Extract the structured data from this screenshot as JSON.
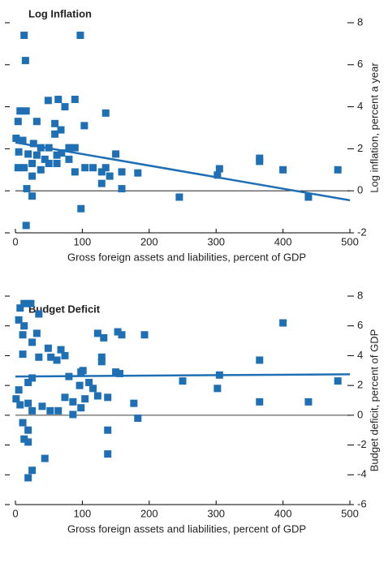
{
  "chart_data": [
    {
      "type": "scatter",
      "title": "Log Inflation",
      "x_label": "Gross foreign assets and liabilities, percent of GDP",
      "y_label": "Log inflation, percent a year",
      "color": "#1f6fb5",
      "zero_line": true,
      "x": [
        13,
        97,
        15,
        16,
        98,
        64,
        49,
        89,
        74,
        135,
        103,
        59,
        68,
        59,
        7,
        16,
        4,
        32,
        1,
        11,
        27,
        38,
        50,
        5,
        19,
        32,
        44,
        62,
        80,
        89,
        69,
        80,
        25,
        13,
        4,
        38,
        50,
        62,
        89,
        104,
        116,
        129,
        135,
        141,
        159,
        150,
        183,
        129,
        159,
        25,
        17,
        25,
        245,
        305,
        302,
        365,
        365,
        400,
        438,
        482
      ],
      "y": [
        7.4,
        7.4,
        6.2,
        -1.65,
        -0.85,
        4.35,
        4.3,
        4.35,
        4.0,
        3.7,
        3.1,
        3.2,
        2.9,
        2.7,
        3.8,
        3.8,
        3.3,
        3.3,
        2.5,
        2.4,
        2.25,
        2.05,
        2.05,
        1.85,
        1.75,
        1.7,
        1.5,
        1.7,
        2.05,
        2.05,
        1.8,
        1.5,
        1.3,
        1.1,
        1.1,
        1.0,
        1.3,
        1.3,
        0.9,
        1.1,
        1.1,
        0.9,
        1.1,
        0.7,
        0.9,
        1.75,
        0.85,
        0.35,
        0.1,
        -0.25,
        0.1,
        0.7,
        -0.3,
        1.05,
        0.75,
        1.55,
        1.4,
        1.0,
        -0.3,
        1.0
      ],
      "trend": {
        "x": [
          0,
          500
        ],
        "y": [
          2.3,
          -0.45
        ]
      },
      "xlim": [
        0,
        500
      ],
      "xticks": [
        0,
        100,
        200,
        300,
        400,
        500
      ],
      "ylim": [
        -2,
        8
      ],
      "yticks": [
        -2,
        0,
        2,
        4,
        6,
        8
      ]
    },
    {
      "type": "scatter",
      "title": "Budget Deficit",
      "x_label": "Gross foreign assets and liabilities, percent of GDP",
      "y_label": "Budget deficit, percent of GDP",
      "color": "#1f6fb5",
      "zero_line": true,
      "x": [
        13,
        23,
        7,
        5,
        35,
        13,
        32,
        11,
        123,
        153,
        159,
        132,
        193,
        25,
        49,
        68,
        11,
        35,
        53,
        62,
        74,
        129,
        129,
        150,
        156,
        98,
        101,
        80,
        19,
        25,
        305,
        250,
        302,
        365,
        365,
        400,
        438,
        482,
        1,
        5,
        7,
        19,
        25,
        40,
        52,
        64,
        74,
        86,
        98,
        104,
        116,
        123,
        138,
        177,
        183,
        86,
        11,
        19,
        13,
        19,
        44,
        25,
        19,
        138,
        138,
        96,
        110
      ],
      "y": [
        7.5,
        7.5,
        7.2,
        6.4,
        6.8,
        6.0,
        5.5,
        5.4,
        5.5,
        5.6,
        5.4,
        5.2,
        5.4,
        4.9,
        4.5,
        4.4,
        4.1,
        3.9,
        3.9,
        3.7,
        4.0,
        3.9,
        3.6,
        2.9,
        2.8,
        2.9,
        3.0,
        2.6,
        2.2,
        2.5,
        2.7,
        2.3,
        1.8,
        3.7,
        0.9,
        6.2,
        0.9,
        2.3,
        1.1,
        1.7,
        0.7,
        0.8,
        0.3,
        0.6,
        0.3,
        0.3,
        1.2,
        0.9,
        0.5,
        1.1,
        1.8,
        1.3,
        1.2,
        0.8,
        -0.2,
        0.05,
        -0.5,
        -1.0,
        -1.6,
        -1.8,
        -2.9,
        -3.7,
        -4.2,
        -2.6,
        -1.0,
        2.0,
        2.2
      ],
      "trend": {
        "x": [
          0,
          500
        ],
        "y": [
          2.6,
          2.75
        ]
      },
      "xlim": [
        0,
        500
      ],
      "xticks": [
        0,
        100,
        200,
        300,
        400,
        500
      ],
      "ylim": [
        -6,
        8
      ],
      "yticks": [
        -6,
        -4,
        -2,
        0,
        2,
        4,
        6,
        8
      ]
    }
  ]
}
